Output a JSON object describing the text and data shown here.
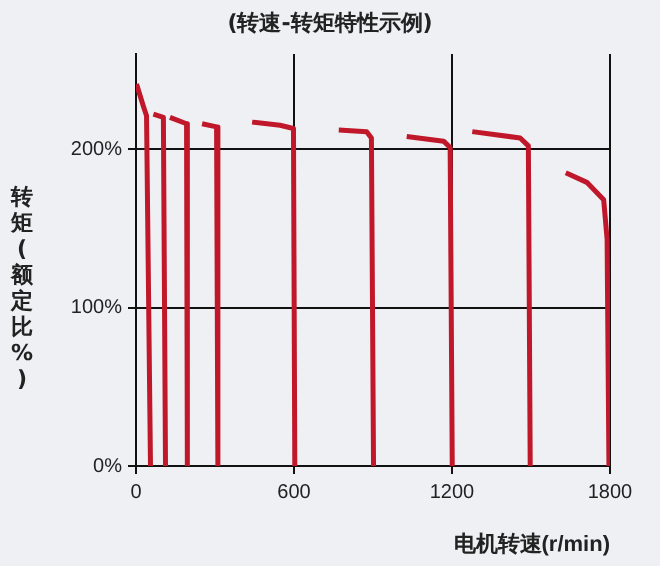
{
  "chart_data": {
    "type": "line",
    "title": "(转速-转矩特性示例)",
    "xlabel": "电机转速(r/min)",
    "ylabel": "转矩(额定比%)",
    "xlim": [
      0,
      1800
    ],
    "xticks": [
      0,
      600,
      1200,
      1800
    ],
    "ylim": [
      0,
      260
    ],
    "yticks": [
      {
        "value": 0,
        "label": "0%"
      },
      {
        "value": 100,
        "label": "100%"
      },
      {
        "value": 200,
        "label": "200%"
      }
    ],
    "grid": true,
    "series": [
      {
        "color": "#c0182a",
        "x": [
          2,
          28,
          40,
          55
        ],
        "values": [
          241,
          227,
          221,
          0
        ]
      },
      {
        "color": "#c0182a",
        "x": [
          66,
          104,
          112
        ],
        "values": [
          222,
          220,
          0
        ]
      },
      {
        "color": "#c0182a",
        "x": [
          129,
          192,
          195
        ],
        "values": [
          220,
          216,
          0
        ]
      },
      {
        "color": "#c0182a",
        "x": [
          251,
          306,
          311
        ],
        "values": [
          216,
          214,
          0
        ]
      },
      {
        "color": "#c0182a",
        "x": [
          441,
          547,
          598,
          603
        ],
        "values": [
          217,
          215,
          213,
          0
        ]
      },
      {
        "color": "#c0182a",
        "x": [
          770,
          876,
          894,
          902
        ],
        "values": [
          212,
          211,
          207,
          0
        ]
      },
      {
        "color": "#c0182a",
        "x": [
          1028,
          1168,
          1193,
          1201
        ],
        "values": [
          208,
          205,
          201,
          0
        ]
      },
      {
        "color": "#c0182a",
        "x": [
          1277,
          1459,
          1490,
          1497
        ],
        "values": [
          211,
          207,
          202,
          0
        ]
      },
      {
        "color": "#c0182a",
        "x": [
          1632,
          1712,
          1776,
          1789,
          1796
        ],
        "values": [
          185,
          179,
          168,
          143,
          0
        ]
      }
    ]
  }
}
